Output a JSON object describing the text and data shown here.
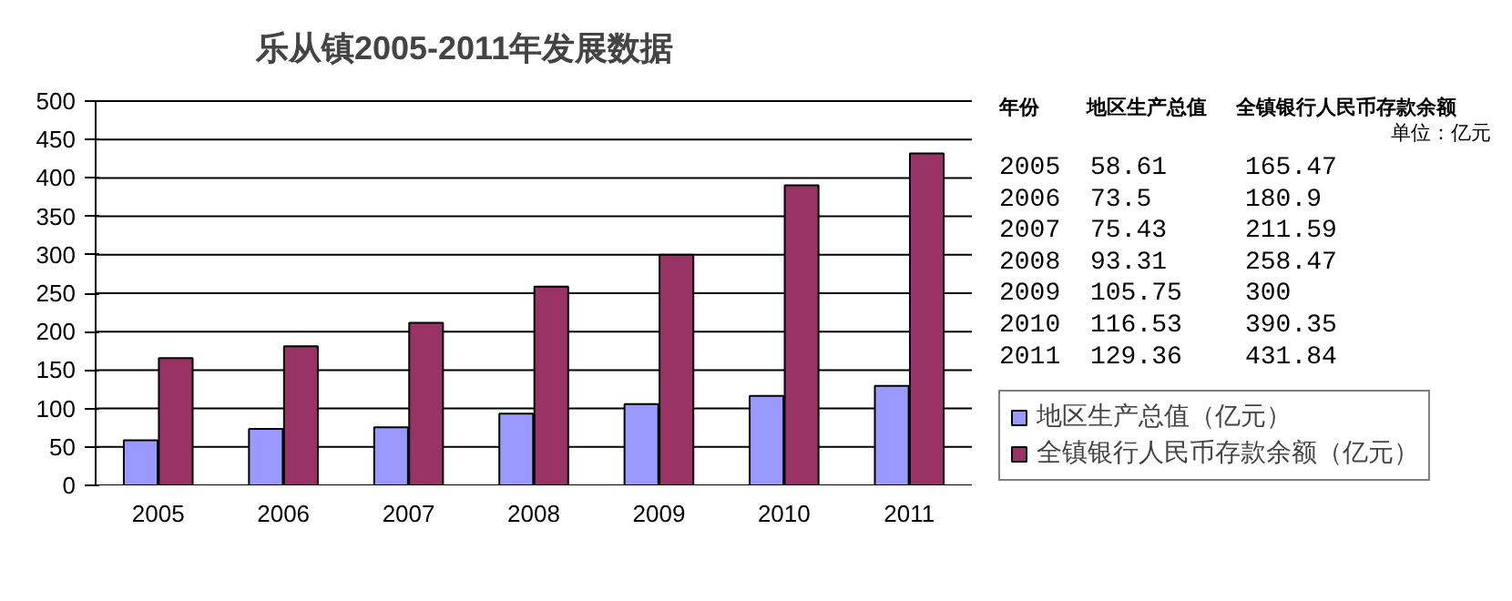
{
  "chart_data": {
    "type": "bar",
    "title": "乐从镇2005-2011年发展数据",
    "categories": [
      "2005",
      "2006",
      "2007",
      "2008",
      "2009",
      "2010",
      "2011"
    ],
    "series": [
      {
        "name": "地区生产总值（亿元）",
        "color": "#9999ff",
        "values": [
          58.61,
          73.5,
          75.43,
          93.31,
          105.75,
          116.53,
          129.36
        ]
      },
      {
        "name": "全镇银行人民币存款余额（亿元）",
        "color": "#993366",
        "values": [
          165.47,
          180.9,
          211.59,
          258.47,
          300,
          390.35,
          431.84
        ]
      }
    ],
    "ylim": [
      0,
      500
    ],
    "yticks": [
      0,
      50,
      100,
      150,
      200,
      250,
      300,
      350,
      400,
      450,
      500
    ],
    "grid": "y",
    "legend": "bottom right",
    "annotations": [
      "年份",
      "地区生产总值",
      "全镇银行人民币存款余额",
      "单位：亿元",
      "58.61",
      "165.47",
      "73.5",
      "180.9",
      "75.43",
      "211.59",
      "93.31",
      "258.47",
      "105.75",
      "300",
      "116.53",
      "390.35",
      "129.36",
      "431.84"
    ]
  }
}
